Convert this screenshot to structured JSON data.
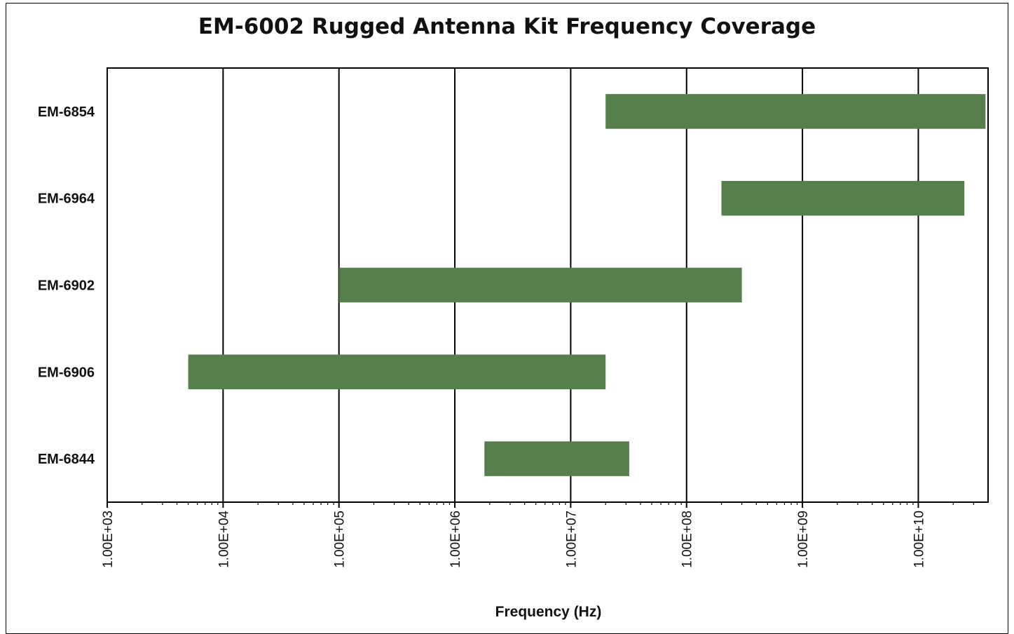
{
  "chart_data": {
    "type": "bar",
    "orientation": "horizontal-range",
    "title": "EM-6002 Rugged Antenna Kit Frequency Coverage",
    "xlabel": "Frequency (Hz)",
    "ylabel": "",
    "x_scale": "log",
    "xlim": [
      1000,
      40000000000
    ],
    "x_ticks": [
      "1.00E+03",
      "1.00E+04",
      "1.00E+05",
      "1.00E+06",
      "1.00E+07",
      "1.00E+08",
      "1.00E+09",
      "1.00E+10"
    ],
    "x_tick_values": [
      1000,
      10000,
      100000,
      1000000,
      10000000,
      100000000,
      1000000000,
      10000000000
    ],
    "grid": "vertical major",
    "legend": "none",
    "bar_color": "#567f4c",
    "bars": [
      {
        "label": "EM-6854",
        "start": 20000000,
        "end": 38000000000
      },
      {
        "label": "EM-6964",
        "start": 200000000,
        "end": 25000000000
      },
      {
        "label": "EM-6902",
        "start": 100000,
        "end": 300000000
      },
      {
        "label": "EM-6906",
        "start": 5000,
        "end": 20000000
      },
      {
        "label": "EM-6844",
        "start": 1800000,
        "end": 32000000
      }
    ]
  }
}
